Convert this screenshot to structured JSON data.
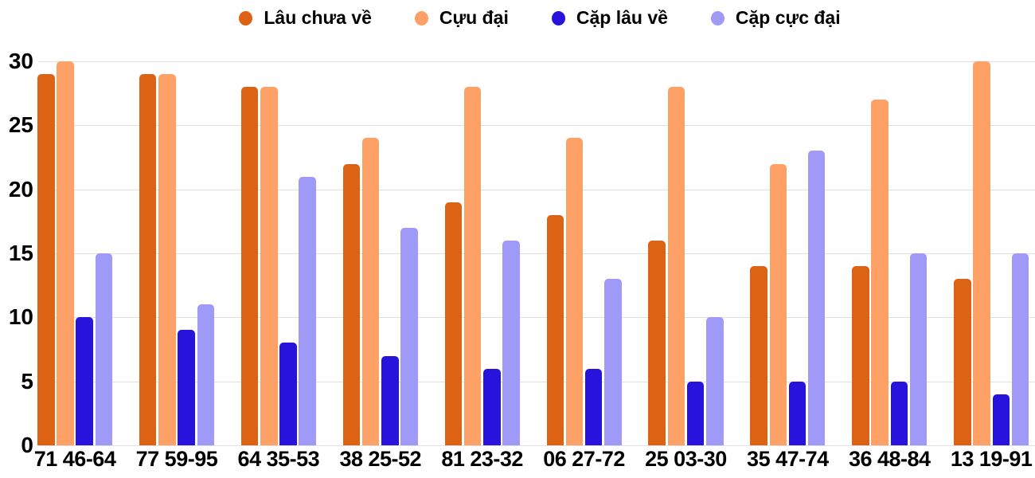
{
  "chart_data": {
    "type": "bar",
    "title": "",
    "xlabel": "",
    "ylabel": "",
    "categories": [
      "71 46-64",
      "77 59-95",
      "64 35-53",
      "38 25-52",
      "81 23-32",
      "06 27-72",
      "25 03-30",
      "35 47-74",
      "36 48-84",
      "13 19-91"
    ],
    "series": [
      {
        "name": "Lâu chưa về",
        "color": "#DC6214",
        "values": [
          29,
          29,
          28,
          22,
          19,
          18,
          16,
          14,
          14,
          13
        ]
      },
      {
        "name": "Cựu đại",
        "color": "#FFA167",
        "values": [
          30,
          29,
          28,
          24,
          28,
          24,
          28,
          22,
          27,
          30
        ]
      },
      {
        "name": "Cặp lâu về",
        "color": "#2713DC",
        "values": [
          10,
          9,
          8,
          7,
          6,
          6,
          5,
          5,
          5,
          4
        ]
      },
      {
        "name": "Cặp cực đại",
        "color": "#9F99F7",
        "values": [
          15,
          11,
          21,
          17,
          16,
          13,
          10,
          23,
          15,
          15
        ]
      }
    ],
    "ylim": [
      0,
      30
    ],
    "yticks": [
      0,
      5,
      10,
      15,
      20,
      25,
      30
    ],
    "grid": true,
    "legend_position": "top"
  },
  "colors": {
    "background": "#FFFFFF",
    "gridline": "#E2E2E2",
    "text": "#000000"
  }
}
